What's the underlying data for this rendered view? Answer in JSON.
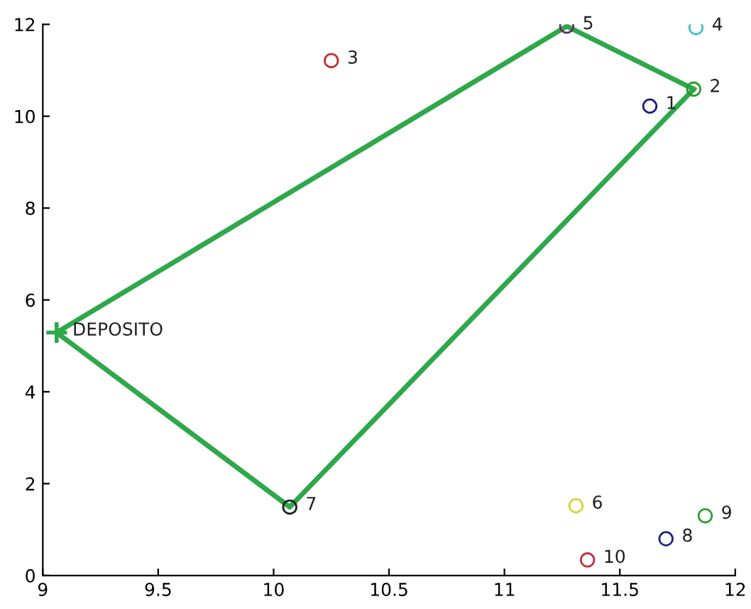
{
  "chart_data": {
    "type": "scatter",
    "xlim": [
      9,
      12
    ],
    "ylim": [
      0,
      12
    ],
    "xticks": [
      9,
      9.5,
      10,
      10.5,
      11,
      11.5,
      12
    ],
    "yticks": [
      0,
      2,
      4,
      6,
      8,
      10,
      12
    ],
    "grid": false,
    "legend": false,
    "series": [
      {
        "type": "line",
        "color": "#2ea84a",
        "marker": "none",
        "line_style": "solid",
        "x": [
          9.06,
          11.27,
          11.82
        ],
        "values": [
          5.29,
          11.96,
          10.59
        ]
      },
      {
        "type": "line",
        "color": "#2ea84a",
        "marker": "none",
        "line_style": "solid",
        "x": [
          11.82,
          10.07,
          9.06
        ],
        "values": [
          10.59,
          1.49,
          5.29
        ]
      },
      {
        "type": "scatter",
        "marker": "circle",
        "x": [
          11.63,
          11.82,
          10.25,
          11.83,
          11.27,
          11.31,
          10.07,
          11.7,
          11.87,
          11.36
        ],
        "values": [
          10.22,
          10.59,
          11.21,
          11.93,
          11.96,
          1.52,
          1.49,
          0.8,
          1.3,
          0.34
        ],
        "colors": [
          "#1a1a80",
          "#2a9a2a",
          "#c03030",
          "#40c0d0",
          "#603060",
          "#d8d040",
          "#202020",
          "#202080",
          "#30a030",
          "#c03040"
        ]
      },
      {
        "type": "scatter",
        "marker": "cross",
        "color": "#2ea84a",
        "x": [
          9.06
        ],
        "values": [
          5.29
        ]
      }
    ],
    "annotations": [
      {
        "text": "1",
        "x": 11.63,
        "y": 10.22
      },
      {
        "text": "2",
        "x": 11.82,
        "y": 10.59
      },
      {
        "text": "3",
        "x": 10.25,
        "y": 11.21
      },
      {
        "text": "4",
        "x": 11.83,
        "y": 11.93
      },
      {
        "text": "5",
        "x": 11.27,
        "y": 11.96
      },
      {
        "text": "6",
        "x": 11.31,
        "y": 1.52
      },
      {
        "text": "7",
        "x": 10.07,
        "y": 1.49
      },
      {
        "text": "8",
        "x": 11.7,
        "y": 0.8
      },
      {
        "text": "9",
        "x": 11.87,
        "y": 1.3
      },
      {
        "text": "10",
        "x": 11.36,
        "y": 0.34
      },
      {
        "text": "DEPOSITO",
        "x": 9.06,
        "y": 5.29
      }
    ]
  }
}
